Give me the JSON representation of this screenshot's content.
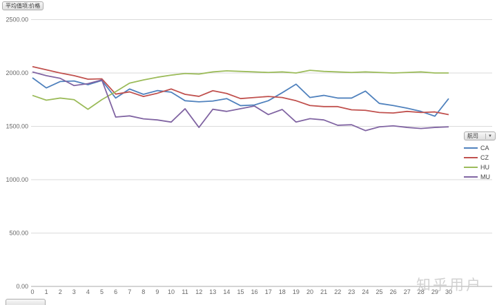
{
  "buttons": {
    "value_field": "平均值项:价格",
    "legend_field": "航司"
  },
  "watermark": "知乎用户",
  "chart_data": {
    "type": "line",
    "x": [
      0,
      1,
      2,
      3,
      4,
      5,
      6,
      7,
      8,
      9,
      10,
      11,
      12,
      13,
      14,
      15,
      16,
      17,
      18,
      19,
      20,
      21,
      22,
      23,
      24,
      25,
      26,
      27,
      28,
      29,
      30
    ],
    "ylim": [
      0,
      2500
    ],
    "ytick_step": 500,
    "ytick_labels": [
      "0.00",
      "500.00",
      "1000.00",
      "1500.00",
      "2000.00",
      "2500.00"
    ],
    "grid": true,
    "legend_position": "right",
    "series": [
      {
        "name": "CA",
        "color": "#4F81BD",
        "values": [
          1955,
          1860,
          1920,
          1925,
          1890,
          1930,
          1765,
          1850,
          1800,
          1835,
          1820,
          1740,
          1730,
          1737,
          1760,
          1694,
          1700,
          1740,
          1815,
          1895,
          1770,
          1790,
          1765,
          1765,
          1830,
          1715,
          1695,
          1670,
          1640,
          1595,
          1760
        ]
      },
      {
        "name": "CZ",
        "color": "#C0504D",
        "values": [
          2060,
          2030,
          2000,
          1975,
          1942,
          1945,
          1802,
          1823,
          1780,
          1810,
          1850,
          1800,
          1781,
          1834,
          1808,
          1760,
          1770,
          1780,
          1770,
          1740,
          1695,
          1685,
          1685,
          1655,
          1650,
          1630,
          1625,
          1640,
          1630,
          1635,
          1610
        ]
      },
      {
        "name": "HU",
        "color": "#9BBB59",
        "values": [
          1790,
          1745,
          1765,
          1750,
          1660,
          1750,
          1825,
          1905,
          1935,
          1960,
          1980,
          1995,
          1990,
          2010,
          2020,
          2015,
          2010,
          2005,
          2010,
          2000,
          2025,
          2015,
          2010,
          2005,
          2010,
          2005,
          2000,
          2005,
          2010,
          2000,
          2000
        ]
      },
      {
        "name": "MU",
        "color": "#8064A2",
        "values": [
          2010,
          1975,
          1950,
          1882,
          1900,
          1935,
          1587,
          1598,
          1570,
          1560,
          1540,
          1665,
          1490,
          1660,
          1640,
          1665,
          1690,
          1610,
          1658,
          1540,
          1572,
          1560,
          1510,
          1515,
          1460,
          1495,
          1505,
          1490,
          1480,
          1490,
          1495
        ]
      }
    ]
  }
}
